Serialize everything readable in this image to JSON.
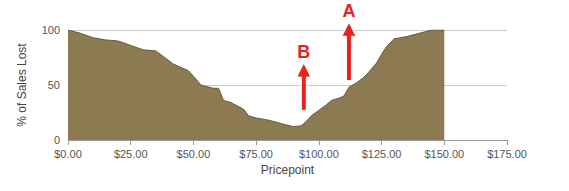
{
  "chart_data": {
    "type": "area",
    "xlabel": "Pricepoint",
    "ylabel": "% of Sales Lost",
    "x": [
      0,
      5,
      10,
      15,
      20,
      25,
      30,
      35,
      38,
      42,
      45,
      48,
      50,
      53,
      58,
      60,
      62,
      65,
      70,
      72,
      75,
      80,
      85,
      90,
      93,
      95,
      97,
      100,
      103,
      105,
      108,
      110,
      112,
      115,
      118,
      120,
      123,
      125,
      127,
      130,
      135,
      140,
      145,
      150
    ],
    "values": [
      100,
      97,
      93,
      91,
      90,
      86,
      82,
      81,
      76,
      69,
      66,
      63,
      58,
      50,
      47,
      47,
      36,
      34,
      28,
      22,
      20,
      18,
      15,
      12,
      13,
      17,
      22,
      27,
      32,
      36,
      38,
      40,
      48,
      52,
      57,
      62,
      70,
      78,
      85,
      92,
      94,
      97,
      100,
      100
    ],
    "color": "#8c7a52",
    "xlim": [
      0,
      175
    ],
    "xticks": [
      {
        "value": 0,
        "label": "$0.00"
      },
      {
        "value": 25,
        "label": "$25.00"
      },
      {
        "value": 50,
        "label": "$50.00"
      },
      {
        "value": 75,
        "label": "$75.00"
      },
      {
        "value": 100,
        "label": "$100.00"
      },
      {
        "value": 125,
        "label": "$125.00"
      },
      {
        "value": 150,
        "label": "$150.00"
      },
      {
        "value": 175,
        "label": "$175.00"
      }
    ],
    "ylim": [
      0,
      100
    ],
    "yticks": [
      0,
      50,
      100
    ],
    "grid": true,
    "annotations": [
      {
        "text": "A",
        "x": 112,
        "y_start": 54,
        "y_end": 107
      },
      {
        "text": "B",
        "x": 94,
        "y_start": 27,
        "y_end": 70
      }
    ]
  }
}
